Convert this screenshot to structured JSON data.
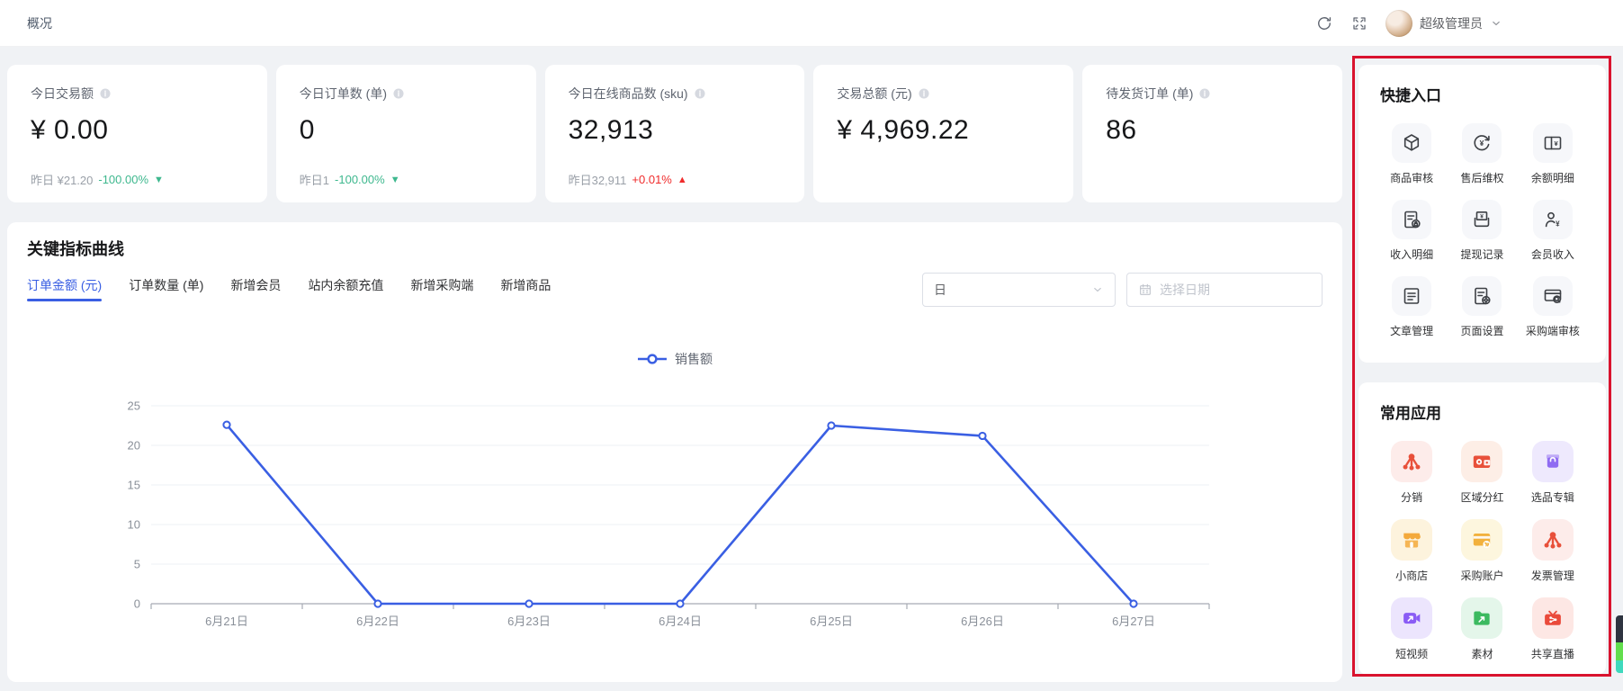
{
  "topbar": {
    "title": "概况",
    "user_name": "超级管理员"
  },
  "trend_glyphs": {
    "up": "▲",
    "down": "▼"
  },
  "colors": {
    "accent_blue": "#3a5fe3",
    "up_red": "#f02b2b",
    "down_green": "#3eb88e",
    "annotation_red": "#d9132e"
  },
  "stat_cards": [
    {
      "label": "今日交易额",
      "value": "¥ 0.00",
      "yesterday": "昨日 ¥21.20",
      "delta": "-100.00%",
      "trend": "down"
    },
    {
      "label": "今日订单数 (单)",
      "value": "0",
      "yesterday": "昨日1",
      "delta": "-100.00%",
      "trend": "down"
    },
    {
      "label": "今日在线商品数 (sku)",
      "value": "32,913",
      "yesterday": "昨日32,911",
      "delta": "+0.01%",
      "trend": "up"
    },
    {
      "label": "交易总额 (元)",
      "value": "¥ 4,969.22",
      "yesterday": "",
      "delta": "",
      "trend": "none"
    },
    {
      "label": "待发货订单 (单)",
      "value": "86",
      "yesterday": "",
      "delta": "",
      "trend": "none"
    }
  ],
  "chart_section": {
    "title": "关键指标曲线",
    "tabs": [
      {
        "label": "订单金额 (元)",
        "active": true
      },
      {
        "label": "订单数量 (单)",
        "active": false
      },
      {
        "label": "新增会员",
        "active": false
      },
      {
        "label": "站内余额充值",
        "active": false
      },
      {
        "label": "新增采购端",
        "active": false
      },
      {
        "label": "新增商品",
        "active": false
      }
    ],
    "period_select_value": "日",
    "date_placeholder": "选择日期"
  },
  "chart_data": {
    "type": "line",
    "x": [
      "6月21日",
      "6月22日",
      "6月23日",
      "6月24日",
      "6月25日",
      "6月26日",
      "6月27日"
    ],
    "series": [
      {
        "name": "销售额",
        "values": [
          22.6,
          0,
          0,
          0,
          22.5,
          21.2,
          0
        ]
      }
    ],
    "ylim": [
      0,
      25
    ],
    "yticks": [
      0,
      5,
      10,
      15,
      20,
      25
    ],
    "grid": true,
    "legend_position": "top-center",
    "line_color": "#3a5fe3"
  },
  "quick_entry": {
    "title": "快捷入口",
    "items": [
      {
        "label": "商品审核",
        "icon": "cube-icon"
      },
      {
        "label": "售后维权",
        "icon": "refund-icon"
      },
      {
        "label": "余额明细",
        "icon": "balance-book-icon"
      },
      {
        "label": "收入明细",
        "icon": "income-doc-icon"
      },
      {
        "label": "提现记录",
        "icon": "withdraw-icon"
      },
      {
        "label": "会员收入",
        "icon": "member-income-icon"
      },
      {
        "label": "文章管理",
        "icon": "article-icon"
      },
      {
        "label": "页面设置",
        "icon": "page-settings-icon"
      },
      {
        "label": "采购端审核",
        "icon": "purchase-review-icon"
      }
    ]
  },
  "common_apps": {
    "title": "常用应用",
    "items": [
      {
        "label": "分销",
        "icon": "distribution-icon",
        "tile_bg": "#fdecea",
        "color": "#e8503a"
      },
      {
        "label": "区域分红",
        "icon": "region-dividend-icon",
        "tile_bg": "#fdeee6",
        "color": "#e8503a"
      },
      {
        "label": "选品专辑",
        "icon": "album-icon",
        "tile_bg": "#eee9fd",
        "color": "#8f6bf2"
      },
      {
        "label": "小商店",
        "icon": "mini-shop-icon",
        "tile_bg": "#fdf3dd",
        "color": "#f3a93c"
      },
      {
        "label": "采购账户",
        "icon": "purchase-account-icon",
        "tile_bg": "#fdf6de",
        "color": "#f2b13d"
      },
      {
        "label": "发票管理",
        "icon": "invoice-icon",
        "tile_bg": "#fdecea",
        "color": "#e8503a"
      },
      {
        "label": "短视频",
        "icon": "short-video-icon",
        "tile_bg": "#ece5fd",
        "color": "#8a5cf5"
      },
      {
        "label": "素材",
        "icon": "material-icon",
        "tile_bg": "#e4f6ea",
        "color": "#3cba60"
      },
      {
        "label": "共享直播",
        "icon": "live-share-icon",
        "tile_bg": "#fde7e4",
        "color": "#ea4a3b"
      }
    ]
  },
  "scroll_widget": {
    "segment_colors": [
      "#2e3440",
      "#62de4d",
      "#3fd9bd"
    ],
    "segment_heights": [
      30,
      20,
      14
    ]
  }
}
